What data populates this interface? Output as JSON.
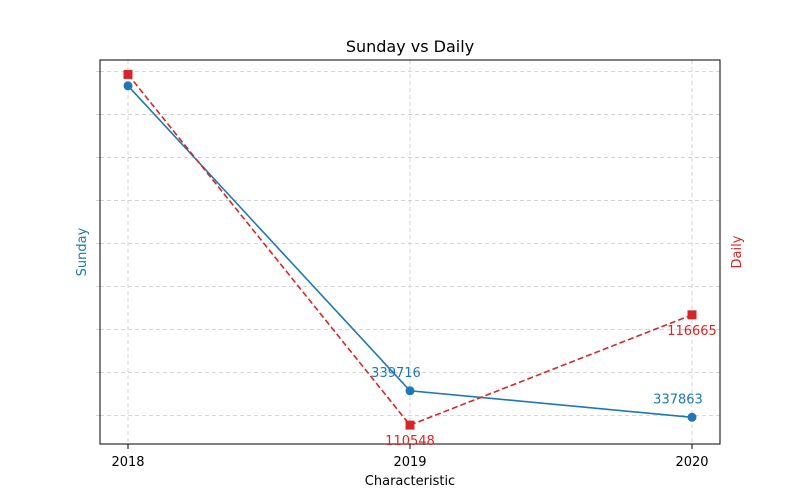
{
  "chart_data": {
    "type": "line",
    "title": "Sunday vs Daily",
    "xlabel": "Characteristic",
    "categories": [
      "2018",
      "2019",
      "2020"
    ],
    "series": [
      {
        "name": "Sunday",
        "axis": "left",
        "color": "#1f77b4",
        "marker": "circle",
        "line_style": "solid",
        "values": [
          361000,
          339716,
          337863
        ],
        "labels": [
          "",
          "339716",
          "337863"
        ],
        "ylim": [
          336000,
          362800
        ]
      },
      {
        "name": "Daily",
        "axis": "right",
        "color": "#d62728",
        "marker": "square",
        "line_style": "dashed",
        "values": [
          130000,
          110548,
          116665
        ],
        "labels": [
          "",
          "110548",
          "116665"
        ],
        "ylim": [
          109500,
          130800
        ]
      }
    ],
    "ylabel_left": "Sunday",
    "ylabel_right": "Daily",
    "grid": true
  }
}
